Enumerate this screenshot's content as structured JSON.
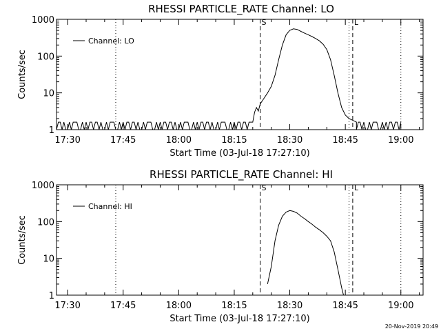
{
  "footer": "20-Nov-2019 20:49",
  "chart_data": [
    {
      "type": "line",
      "title": "RHESSI PARTICLE_RATE Channel: LO",
      "xlabel": "Start Time (03-Jul-18 17:27:10)",
      "ylabel": "Counts/sec",
      "yscale": "log",
      "ylim": [
        1,
        1000
      ],
      "xlim": [
        "17:27",
        "19:06"
      ],
      "xticks": [
        "17:30",
        "17:45",
        "18:00",
        "18:15",
        "18:30",
        "18:45",
        "19:00"
      ],
      "yticks": [
        "1",
        "10",
        "100",
        "1000"
      ],
      "legend": {
        "label": "Channel: LO",
        "position": "top-left"
      },
      "grid": false,
      "vlines": [
        {
          "time": "17:43",
          "style": "dotted",
          "label": ""
        },
        {
          "time": "18:22",
          "style": "dashed",
          "label": "S"
        },
        {
          "time": "18:46",
          "style": "dotted",
          "label": ""
        },
        {
          "time": "18:47",
          "style": "dashed",
          "label": "L"
        },
        {
          "time": "19:00",
          "style": "dotted",
          "label": ""
        }
      ],
      "series": [
        {
          "name": "Channel: LO",
          "noise": {
            "from": "17:27",
            "to": "18:19",
            "low": 1,
            "high": 1.6
          },
          "points": [
            [
              "18:19",
              1.6
            ],
            [
              "18:20",
              1.6
            ],
            [
              "18:20.5",
              3
            ],
            [
              "18:21",
              4
            ],
            [
              "18:21.5",
              3.2
            ],
            [
              "18:22",
              5
            ],
            [
              "18:23",
              7
            ],
            [
              "18:24",
              10
            ],
            [
              "18:25",
              15
            ],
            [
              "18:26",
              30
            ],
            [
              "18:27",
              80
            ],
            [
              "18:28",
              200
            ],
            [
              "18:29",
              380
            ],
            [
              "18:30",
              500
            ],
            [
              "18:31",
              550
            ],
            [
              "18:32",
              530
            ],
            [
              "18:33",
              470
            ],
            [
              "18:34",
              420
            ],
            [
              "18:35",
              380
            ],
            [
              "18:36",
              340
            ],
            [
              "18:37",
              300
            ],
            [
              "18:38",
              260
            ],
            [
              "18:39",
              210
            ],
            [
              "18:40",
              150
            ],
            [
              "18:41",
              80
            ],
            [
              "18:42",
              30
            ],
            [
              "18:43",
              10
            ],
            [
              "18:44",
              4
            ],
            [
              "18:45",
              2.5
            ],
            [
              "18:46",
              2
            ],
            [
              "18:47",
              1.8
            ],
            [
              "18:48",
              1.6
            ]
          ],
          "noise_after": {
            "from": "18:48",
            "to": "19:00",
            "low": 1,
            "high": 1.6
          }
        }
      ]
    },
    {
      "type": "line",
      "title": "RHESSI PARTICLE_RATE Channel: HI",
      "xlabel": "Start Time (03-Jul-18 17:27:10)",
      "ylabel": "Counts/sec",
      "yscale": "log",
      "ylim": [
        1,
        1000
      ],
      "xlim": [
        "17:27",
        "19:06"
      ],
      "xticks": [
        "17:30",
        "17:45",
        "18:00",
        "18:15",
        "18:30",
        "18:45",
        "19:00"
      ],
      "yticks": [
        "1",
        "10",
        "100",
        "1000"
      ],
      "legend": {
        "label": "Channel: HI",
        "position": "top-left"
      },
      "grid": false,
      "vlines": [
        {
          "time": "17:43",
          "style": "dotted",
          "label": ""
        },
        {
          "time": "18:22",
          "style": "dashed",
          "label": "S"
        },
        {
          "time": "18:46",
          "style": "dotted",
          "label": ""
        },
        {
          "time": "18:47",
          "style": "dashed",
          "label": "L"
        },
        {
          "time": "19:00",
          "style": "dotted",
          "label": ""
        }
      ],
      "series": [
        {
          "name": "Channel: HI",
          "points": [
            [
              "18:24",
              2
            ],
            [
              "18:25",
              6
            ],
            [
              "18:26",
              30
            ],
            [
              "18:27",
              80
            ],
            [
              "18:28",
              140
            ],
            [
              "18:29",
              180
            ],
            [
              "18:30",
              200
            ],
            [
              "18:31",
              190
            ],
            [
              "18:32",
              170
            ],
            [
              "18:33",
              140
            ],
            [
              "18:34",
              120
            ],
            [
              "18:35",
              100
            ],
            [
              "18:36",
              85
            ],
            [
              "18:37",
              70
            ],
            [
              "18:38",
              60
            ],
            [
              "18:39",
              50
            ],
            [
              "18:40",
              40
            ],
            [
              "18:41",
              30
            ],
            [
              "18:42",
              15
            ],
            [
              "18:43",
              5
            ],
            [
              "18:44",
              1.6
            ],
            [
              "18:44.5",
              1
            ]
          ]
        }
      ]
    }
  ]
}
